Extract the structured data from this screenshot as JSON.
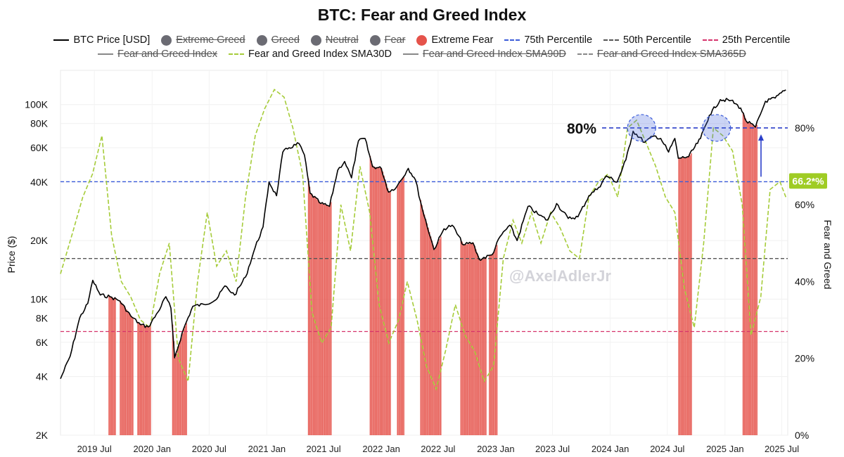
{
  "chart_data": {
    "type": "line",
    "title": "BTC: Fear and Greed Index",
    "ylabel_left": "Price ($)",
    "ylabel_right": "Fear and Greed",
    "y_left_scale": "log",
    "y_left_range": [
      2000,
      150000
    ],
    "y_left_ticks": [
      "2K",
      "4K",
      "6K",
      "8K",
      "10K",
      "20K",
      "40K",
      "60K",
      "80K",
      "100K"
    ],
    "y_left_tick_values": [
      2000,
      4000,
      6000,
      8000,
      10000,
      20000,
      40000,
      60000,
      80000,
      100000
    ],
    "y_right_range": [
      0,
      95
    ],
    "y_right_ticks": [
      "0%",
      "20%",
      "40%",
      "60%",
      "80%"
    ],
    "y_right_tick_values": [
      0,
      20,
      40,
      60,
      80
    ],
    "x_range": [
      "2019-03-15",
      "2025-07-20"
    ],
    "x_ticks": [
      "2019 Jul",
      "2020 Jan",
      "2020 Jul",
      "2021 Jan",
      "2021 Jul",
      "2022 Jan",
      "2022 Jul",
      "2023 Jan",
      "2023 Jul",
      "2024 Jan",
      "2024 Jul",
      "2025 Jan",
      "2025 Jul"
    ],
    "x_tick_dates": [
      "2019-07-01",
      "2020-01-01",
      "2020-07-01",
      "2021-01-01",
      "2021-07-01",
      "2022-01-01",
      "2022-07-01",
      "2023-01-01",
      "2023-07-01",
      "2024-01-01",
      "2024-07-01",
      "2025-01-01",
      "2025-07-01"
    ],
    "legend": [
      {
        "label": "BTC Price [USD]",
        "kind": "line",
        "color": "#000000",
        "style": "solid",
        "visible": true
      },
      {
        "label": "Extreme Greed",
        "kind": "dot",
        "color": "#6b6b73",
        "visible": false
      },
      {
        "label": "Greed",
        "kind": "dot",
        "color": "#6b6b73",
        "visible": false
      },
      {
        "label": "Neutral",
        "kind": "dot",
        "color": "#6b6b73",
        "visible": false
      },
      {
        "label": "Fear",
        "kind": "dot",
        "color": "#6b6b73",
        "visible": false
      },
      {
        "label": "Extreme Fear",
        "kind": "dot",
        "color": "#e5534b",
        "visible": true
      },
      {
        "label": "75th Percentile",
        "kind": "line",
        "color": "#3a5bd9",
        "style": "dashed",
        "visible": true
      },
      {
        "label": "50th Percentile",
        "kind": "line",
        "color": "#555555",
        "style": "dashed",
        "visible": true
      },
      {
        "label": "25th Percentile",
        "kind": "line",
        "color": "#d6336c",
        "style": "dashed",
        "visible": true
      },
      {
        "label": "Fear and Greed Index",
        "kind": "line",
        "color": "#888888",
        "style": "solid",
        "visible": false
      },
      {
        "label": "Fear and Greed Index SMA30D",
        "kind": "line",
        "color": "#a6cc3a",
        "style": "dashed",
        "visible": true
      },
      {
        "label": "Fear and Greed Index SMA90D",
        "kind": "line",
        "color": "#888888",
        "style": "solid",
        "visible": false
      },
      {
        "label": "Fear and Greed Index SMA365D",
        "kind": "line",
        "color": "#888888",
        "style": "dashdot",
        "visible": false
      }
    ],
    "percentiles": {
      "p75": 66,
      "p50": 46,
      "p25": 27
    },
    "annotations": {
      "level_label": "80%",
      "level_value": 80,
      "current_badge": "66.2*%",
      "current_value": 66.2,
      "watermark": "@AxelAdlerJr"
    },
    "series": [
      {
        "name": "BTC Price [USD]",
        "x": [
          "2019-03-15",
          "2019-04-15",
          "2019-05-15",
          "2019-06-10",
          "2019-06-26",
          "2019-07-20",
          "2019-08-20",
          "2019-09-20",
          "2019-10-25",
          "2019-11-25",
          "2019-12-20",
          "2020-01-20",
          "2020-02-14",
          "2020-03-01",
          "2020-03-13",
          "2020-04-10",
          "2020-05-10",
          "2020-06-15",
          "2020-07-25",
          "2020-08-20",
          "2020-09-20",
          "2020-10-25",
          "2020-11-25",
          "2020-12-20",
          "2021-01-08",
          "2021-02-01",
          "2021-02-21",
          "2021-03-13",
          "2021-04-14",
          "2021-05-01",
          "2021-05-19",
          "2021-06-22",
          "2021-07-20",
          "2021-08-15",
          "2021-09-06",
          "2021-09-28",
          "2021-10-20",
          "2021-11-10",
          "2021-12-04",
          "2022-01-01",
          "2022-01-24",
          "2022-02-20",
          "2022-03-28",
          "2022-04-20",
          "2022-05-12",
          "2022-06-18",
          "2022-07-20",
          "2022-08-15",
          "2022-09-20",
          "2022-10-20",
          "2022-11-09",
          "2022-12-20",
          "2023-01-15",
          "2023-02-15",
          "2023-03-10",
          "2023-04-14",
          "2023-05-20",
          "2023-06-15",
          "2023-07-14",
          "2023-08-20",
          "2023-09-20",
          "2023-10-25",
          "2023-11-25",
          "2023-12-20",
          "2024-01-23",
          "2024-02-20",
          "2024-03-14",
          "2024-04-20",
          "2024-05-20",
          "2024-06-10",
          "2024-07-05",
          "2024-07-25",
          "2024-08-05",
          "2024-09-07",
          "2024-10-15",
          "2024-11-12",
          "2024-12-17",
          "2025-01-20",
          "2025-02-20",
          "2025-03-10",
          "2025-04-08",
          "2025-05-10",
          "2025-06-10",
          "2025-07-14"
        ],
        "values": [
          3900,
          5100,
          8000,
          9500,
          12500,
          10500,
          10300,
          9800,
          8200,
          7400,
          7200,
          8600,
          10300,
          9000,
          5000,
          7000,
          9200,
          9400,
          10000,
          11700,
          10500,
          13000,
          18500,
          23500,
          40000,
          34000,
          57000,
          60000,
          63000,
          55000,
          35000,
          31000,
          30000,
          46000,
          51000,
          42000,
          65000,
          67000,
          48000,
          47000,
          35500,
          38000,
          47000,
          41000,
          29000,
          18000,
          23000,
          24000,
          19000,
          19500,
          16000,
          16900,
          21000,
          24000,
          20000,
          30000,
          27000,
          25500,
          31000,
          26000,
          26500,
          34000,
          37500,
          43000,
          40000,
          52000,
          73000,
          64000,
          69000,
          67000,
          57000,
          67000,
          53000,
          54000,
          67000,
          88000,
          106000,
          105000,
          96000,
          82000,
          76500,
          104000,
          108000,
          119000
        ]
      },
      {
        "name": "Fear and Greed Index SMA30D",
        "x": [
          "2019-03-15",
          "2019-04-20",
          "2019-05-25",
          "2019-06-25",
          "2019-07-25",
          "2019-08-25",
          "2019-09-25",
          "2019-10-25",
          "2019-11-25",
          "2019-12-25",
          "2020-01-25",
          "2020-02-25",
          "2020-03-25",
          "2020-04-25",
          "2020-05-25",
          "2020-06-25",
          "2020-07-25",
          "2020-08-25",
          "2020-09-25",
          "2020-10-25",
          "2020-11-25",
          "2020-12-25",
          "2021-01-25",
          "2021-02-25",
          "2021-03-25",
          "2021-04-25",
          "2021-05-25",
          "2021-06-25",
          "2021-07-25",
          "2021-08-25",
          "2021-09-25",
          "2021-10-25",
          "2021-11-25",
          "2021-12-25",
          "2022-01-25",
          "2022-02-25",
          "2022-03-25",
          "2022-04-25",
          "2022-05-25",
          "2022-06-25",
          "2022-07-25",
          "2022-08-25",
          "2022-09-25",
          "2022-10-25",
          "2022-11-25",
          "2022-12-25",
          "2023-01-25",
          "2023-02-25",
          "2023-03-25",
          "2023-04-25",
          "2023-05-25",
          "2023-06-25",
          "2023-07-25",
          "2023-08-25",
          "2023-09-25",
          "2023-10-25",
          "2023-11-25",
          "2023-12-25",
          "2024-01-25",
          "2024-02-25",
          "2024-03-25",
          "2024-04-25",
          "2024-05-25",
          "2024-06-25",
          "2024-07-25",
          "2024-08-25",
          "2024-09-25",
          "2024-10-25",
          "2024-11-25",
          "2024-12-25",
          "2025-01-25",
          "2025-02-25",
          "2025-03-25",
          "2025-04-25",
          "2025-05-25",
          "2025-06-25",
          "2025-07-14"
        ],
        "values": [
          42,
          52,
          62,
          68,
          78,
          52,
          40,
          36,
          30,
          28,
          42,
          50,
          20,
          14,
          40,
          58,
          44,
          48,
          40,
          62,
          78,
          85,
          90,
          88,
          80,
          68,
          32,
          24,
          28,
          60,
          48,
          70,
          58,
          34,
          24,
          30,
          40,
          30,
          18,
          12,
          22,
          34,
          26,
          22,
          14,
          18,
          46,
          56,
          50,
          58,
          50,
          58,
          54,
          48,
          46,
          62,
          66,
          68,
          62,
          80,
          82,
          76,
          70,
          62,
          58,
          38,
          28,
          50,
          80,
          78,
          74,
          60,
          26,
          36,
          64,
          66,
          62
        ]
      }
    ],
    "extreme_fear_periods": [
      [
        "2019-08-15",
        "2019-09-05"
      ],
      [
        "2019-09-20",
        "2019-10-30"
      ],
      [
        "2019-11-15",
        "2019-12-25"
      ],
      [
        "2020-03-05",
        "2020-04-20"
      ],
      [
        "2021-05-12",
        "2021-07-25"
      ],
      [
        "2021-11-25",
        "2022-01-31"
      ],
      [
        "2022-02-20",
        "2022-03-15"
      ],
      [
        "2022-05-05",
        "2022-07-10"
      ],
      [
        "2022-09-10",
        "2022-11-30"
      ],
      [
        "2022-12-10",
        "2023-01-05"
      ],
      [
        "2024-08-05",
        "2024-09-15"
      ],
      [
        "2025-02-26",
        "2025-04-12"
      ]
    ]
  }
}
